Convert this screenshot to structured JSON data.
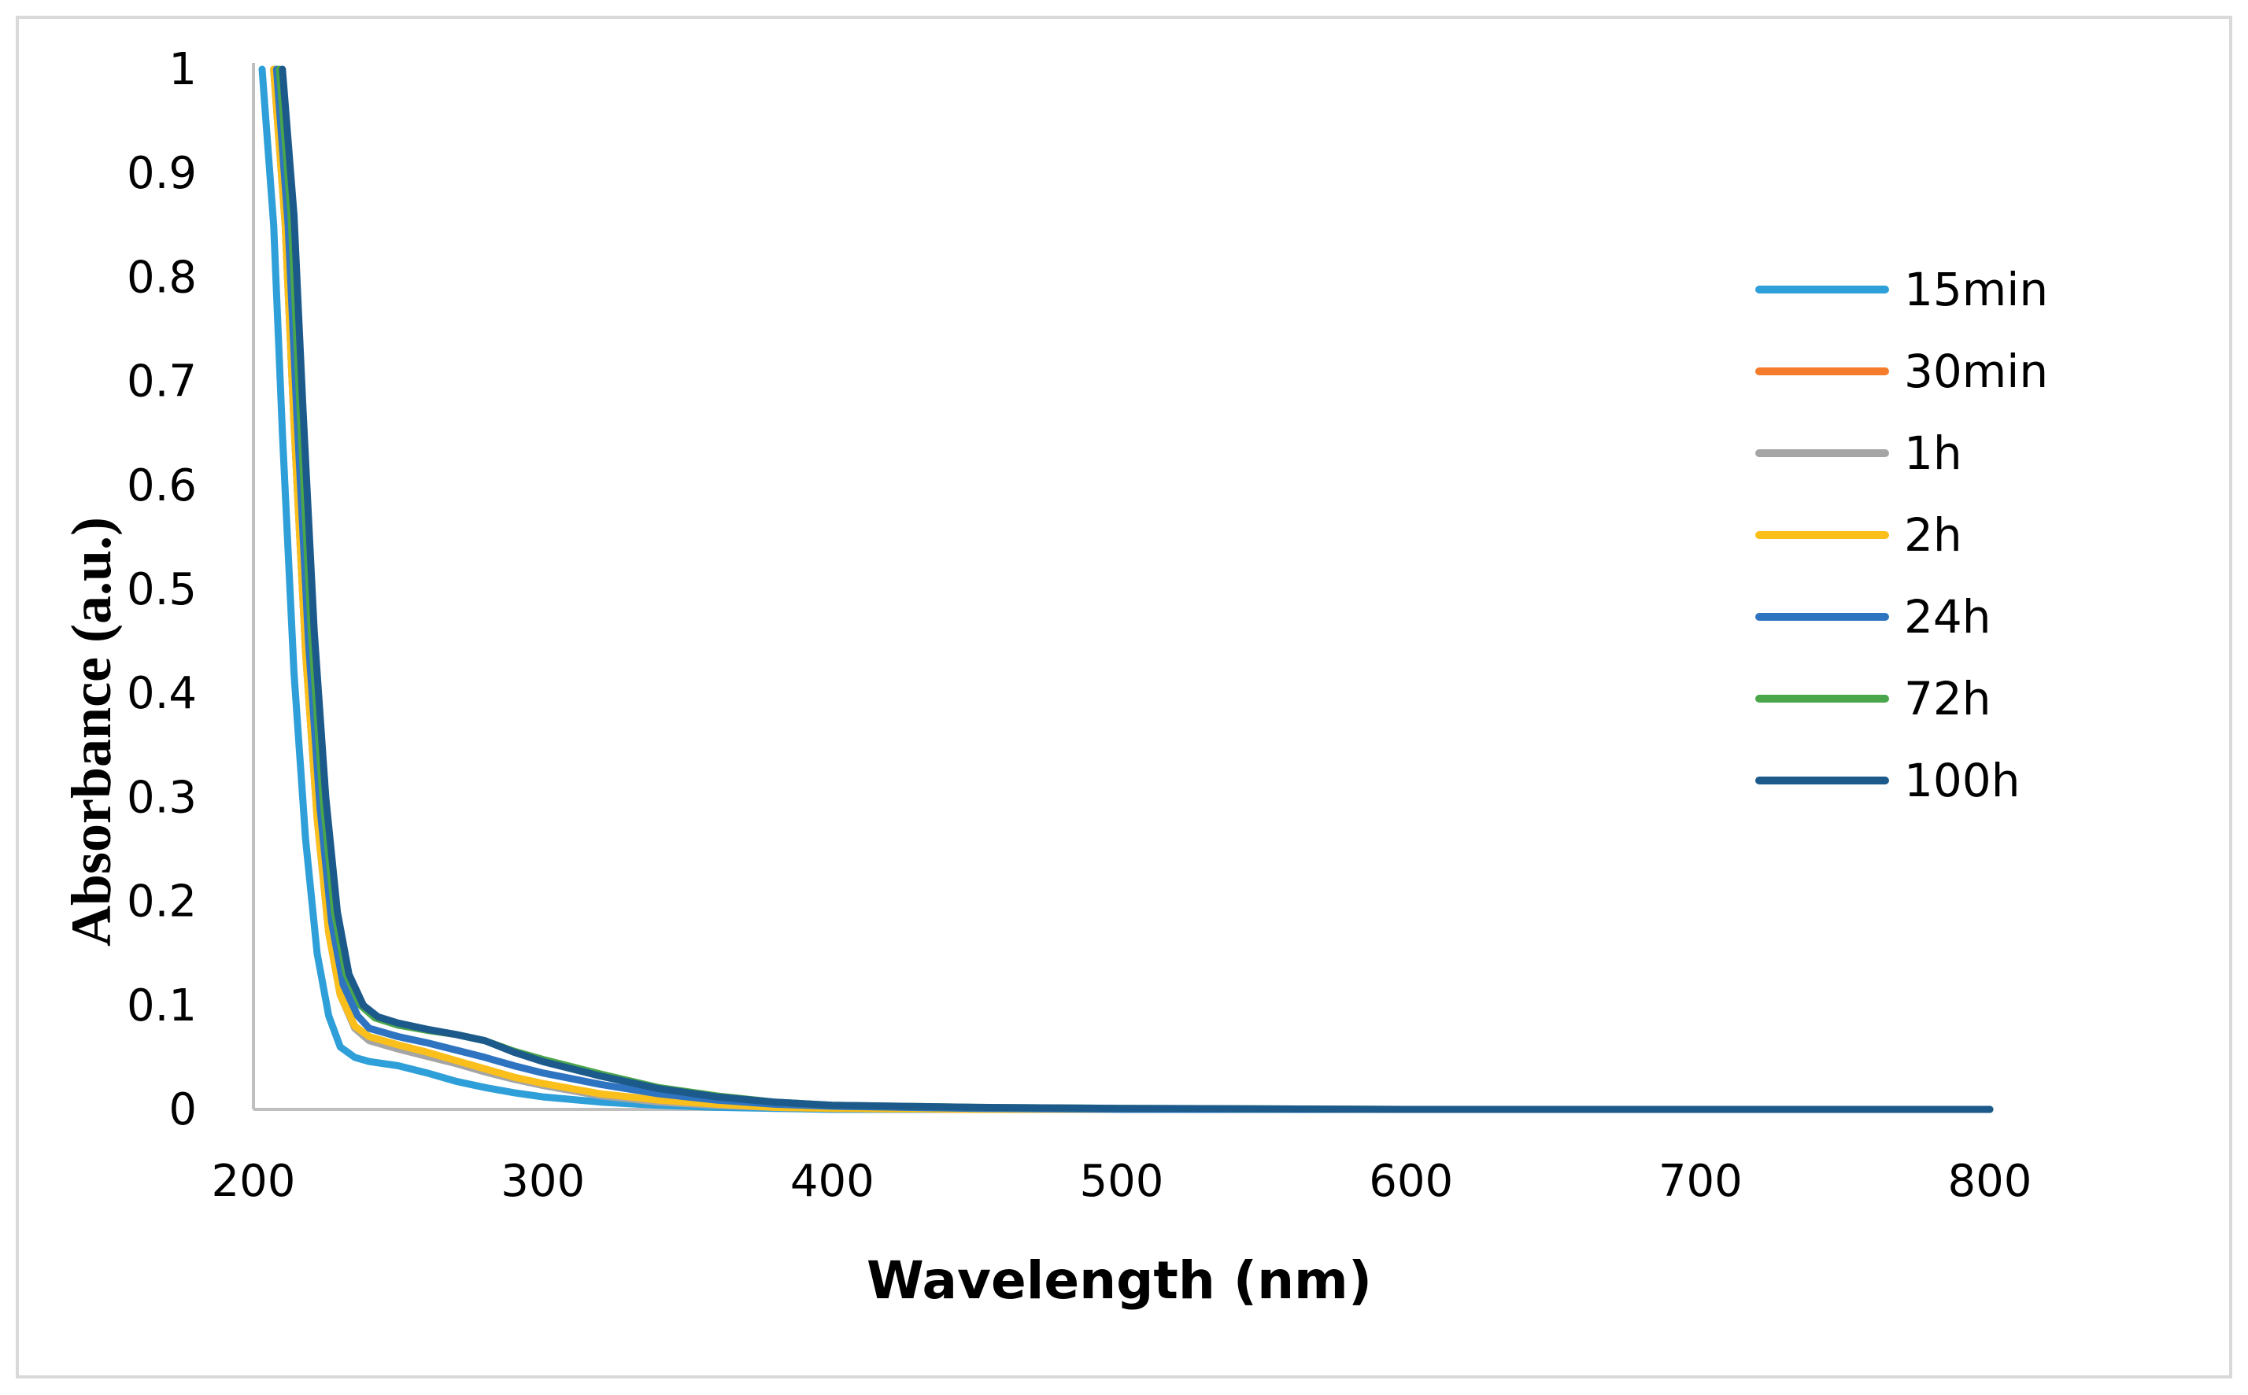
{
  "chart_data": {
    "type": "line",
    "title": "",
    "xlabel": "Wavelength (nm)",
    "ylabel": "Absorbance (a.u.)",
    "xlim": [
      200,
      800
    ],
    "ylim": [
      0,
      1
    ],
    "x_ticks": [
      "200",
      "300",
      "400",
      "500",
      "600",
      "700",
      "800"
    ],
    "y_ticks": [
      "0",
      "0.1",
      "0.2",
      "0.3",
      "0.4",
      "0.5",
      "0.6",
      "0.7",
      "0.8",
      "0.9",
      "1"
    ],
    "grid": false,
    "legend_position": "right",
    "series": [
      {
        "name": "15min",
        "color": "#2e9fd8",
        "points": [
          [
            203,
            1.0
          ],
          [
            207,
            0.85
          ],
          [
            210,
            0.65
          ],
          [
            214,
            0.42
          ],
          [
            218,
            0.26
          ],
          [
            222,
            0.15
          ],
          [
            226,
            0.09
          ],
          [
            230,
            0.06
          ],
          [
            235,
            0.05
          ],
          [
            240,
            0.046
          ],
          [
            250,
            0.042
          ],
          [
            260,
            0.035
          ],
          [
            270,
            0.027
          ],
          [
            280,
            0.021
          ],
          [
            290,
            0.016
          ],
          [
            300,
            0.012
          ],
          [
            320,
            0.007
          ],
          [
            340,
            0.004
          ],
          [
            360,
            0.002
          ],
          [
            380,
            0.001
          ],
          [
            400,
            0.0
          ],
          [
            500,
            0.0
          ],
          [
            600,
            0.0
          ],
          [
            700,
            0.0
          ],
          [
            800,
            0.0
          ]
        ]
      },
      {
        "name": "30min",
        "color": "#f47c2a",
        "points": [
          [
            207,
            1.0
          ],
          [
            211,
            0.85
          ],
          [
            214,
            0.66
          ],
          [
            218,
            0.44
          ],
          [
            222,
            0.28
          ],
          [
            226,
            0.17
          ],
          [
            230,
            0.11
          ],
          [
            235,
            0.08
          ],
          [
            240,
            0.068
          ],
          [
            250,
            0.061
          ],
          [
            260,
            0.054
          ],
          [
            270,
            0.046
          ],
          [
            280,
            0.038
          ],
          [
            290,
            0.03
          ],
          [
            300,
            0.024
          ],
          [
            320,
            0.014
          ],
          [
            340,
            0.008
          ],
          [
            360,
            0.004
          ],
          [
            380,
            0.002
          ],
          [
            400,
            0.001
          ],
          [
            450,
            0.0
          ],
          [
            500,
            0.0
          ],
          [
            600,
            0.0
          ],
          [
            700,
            0.0
          ],
          [
            800,
            0.0
          ]
        ]
      },
      {
        "name": "1h",
        "color": "#a5a5a5",
        "points": [
          [
            207,
            1.0
          ],
          [
            211,
            0.85
          ],
          [
            214,
            0.66
          ],
          [
            218,
            0.44
          ],
          [
            222,
            0.28
          ],
          [
            226,
            0.17
          ],
          [
            230,
            0.11
          ],
          [
            235,
            0.078
          ],
          [
            240,
            0.066
          ],
          [
            250,
            0.058
          ],
          [
            260,
            0.051
          ],
          [
            270,
            0.044
          ],
          [
            280,
            0.036
          ],
          [
            290,
            0.029
          ],
          [
            300,
            0.023
          ],
          [
            320,
            0.013
          ],
          [
            340,
            0.007
          ],
          [
            360,
            0.004
          ],
          [
            380,
            0.002
          ],
          [
            400,
            0.001
          ],
          [
            450,
            0.0
          ],
          [
            500,
            0.0
          ],
          [
            600,
            0.0
          ],
          [
            700,
            0.0
          ],
          [
            800,
            0.0
          ]
        ]
      },
      {
        "name": "2h",
        "color": "#fbbf1b",
        "points": [
          [
            207,
            1.0
          ],
          [
            211,
            0.85
          ],
          [
            214,
            0.66
          ],
          [
            218,
            0.44
          ],
          [
            222,
            0.28
          ],
          [
            226,
            0.17
          ],
          [
            230,
            0.11
          ],
          [
            235,
            0.08
          ],
          [
            240,
            0.07
          ],
          [
            250,
            0.062
          ],
          [
            260,
            0.055
          ],
          [
            270,
            0.047
          ],
          [
            280,
            0.039
          ],
          [
            290,
            0.031
          ],
          [
            300,
            0.025
          ],
          [
            320,
            0.015
          ],
          [
            340,
            0.009
          ],
          [
            360,
            0.005
          ],
          [
            380,
            0.002
          ],
          [
            400,
            0.001
          ],
          [
            450,
            0.0
          ],
          [
            500,
            0.0
          ],
          [
            600,
            0.0
          ],
          [
            700,
            0.0
          ],
          [
            800,
            0.0
          ]
        ]
      },
      {
        "name": "24h",
        "color": "#2f74c0",
        "points": [
          [
            208,
            1.0
          ],
          [
            212,
            0.85
          ],
          [
            215,
            0.67
          ],
          [
            219,
            0.45
          ],
          [
            223,
            0.29
          ],
          [
            227,
            0.18
          ],
          [
            231,
            0.12
          ],
          [
            236,
            0.09
          ],
          [
            240,
            0.078
          ],
          [
            250,
            0.07
          ],
          [
            260,
            0.064
          ],
          [
            270,
            0.057
          ],
          [
            280,
            0.05
          ],
          [
            290,
            0.042
          ],
          [
            300,
            0.035
          ],
          [
            320,
            0.024
          ],
          [
            340,
            0.015
          ],
          [
            360,
            0.009
          ],
          [
            380,
            0.005
          ],
          [
            400,
            0.003
          ],
          [
            450,
            0.001
          ],
          [
            500,
            0.0
          ],
          [
            600,
            0.0
          ],
          [
            700,
            0.0
          ],
          [
            800,
            0.0
          ]
        ]
      },
      {
        "name": "72h",
        "color": "#4aa64a",
        "points": [
          [
            209,
            1.0
          ],
          [
            213,
            0.86
          ],
          [
            216,
            0.68
          ],
          [
            220,
            0.46
          ],
          [
            224,
            0.3
          ],
          [
            228,
            0.19
          ],
          [
            232,
            0.13
          ],
          [
            237,
            0.1
          ],
          [
            242,
            0.088
          ],
          [
            250,
            0.081
          ],
          [
            260,
            0.076
          ],
          [
            270,
            0.072
          ],
          [
            280,
            0.066
          ],
          [
            290,
            0.056
          ],
          [
            300,
            0.048
          ],
          [
            320,
            0.034
          ],
          [
            340,
            0.021
          ],
          [
            360,
            0.013
          ],
          [
            380,
            0.007
          ],
          [
            400,
            0.004
          ],
          [
            450,
            0.002
          ],
          [
            500,
            0.001
          ],
          [
            600,
            0.0
          ],
          [
            700,
            0.0
          ],
          [
            800,
            0.0
          ]
        ]
      },
      {
        "name": "100h",
        "color": "#1d5a8c",
        "points": [
          [
            210,
            1.0
          ],
          [
            214,
            0.86
          ],
          [
            217,
            0.68
          ],
          [
            221,
            0.46
          ],
          [
            225,
            0.3
          ],
          [
            229,
            0.19
          ],
          [
            233,
            0.13
          ],
          [
            238,
            0.1
          ],
          [
            243,
            0.089
          ],
          [
            250,
            0.083
          ],
          [
            260,
            0.077
          ],
          [
            270,
            0.072
          ],
          [
            280,
            0.066
          ],
          [
            290,
            0.055
          ],
          [
            300,
            0.046
          ],
          [
            320,
            0.032
          ],
          [
            340,
            0.02
          ],
          [
            360,
            0.012
          ],
          [
            380,
            0.007
          ],
          [
            400,
            0.004
          ],
          [
            450,
            0.002
          ],
          [
            500,
            0.001
          ],
          [
            600,
            0.0
          ],
          [
            700,
            0.0
          ],
          [
            800,
            0.0
          ]
        ]
      }
    ]
  }
}
